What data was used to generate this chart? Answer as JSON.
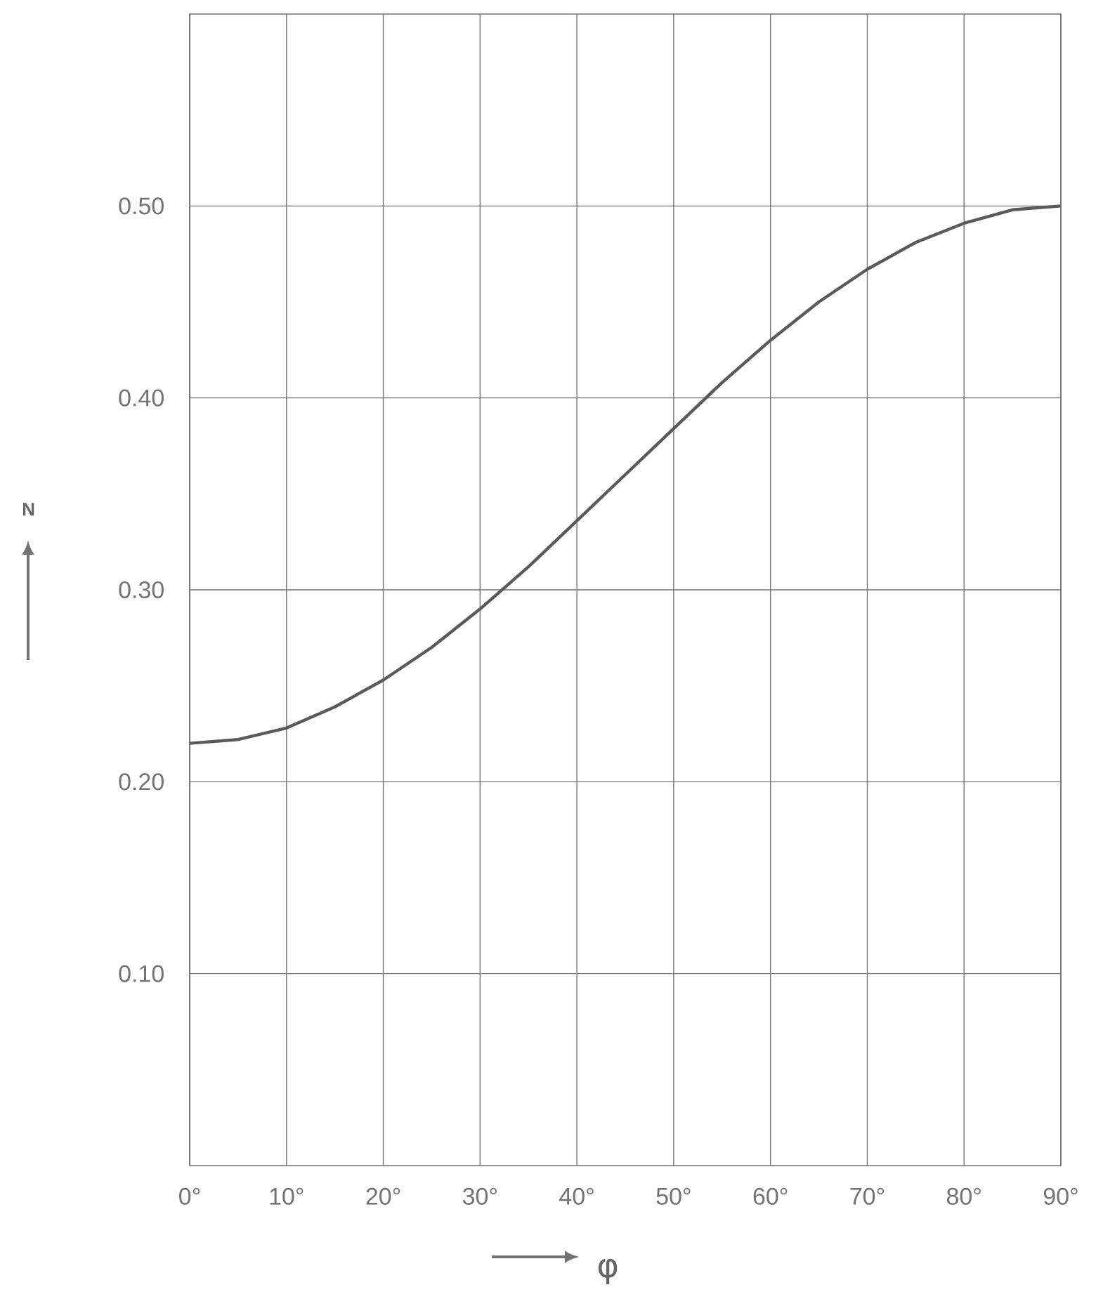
{
  "chart_data": {
    "type": "line",
    "xlabel": "φ",
    "ylabel": "N",
    "x": [
      0,
      5,
      10,
      15,
      20,
      25,
      30,
      35,
      40,
      45,
      50,
      55,
      60,
      65,
      70,
      75,
      80,
      85,
      90
    ],
    "series": [
      {
        "color": "#5a5a5a",
        "values": [
          0.22,
          0.222,
          0.228,
          0.239,
          0.253,
          0.27,
          0.29,
          0.312,
          0.336,
          0.36,
          0.384,
          0.408,
          0.43,
          0.45,
          0.467,
          0.481,
          0.491,
          0.498,
          0.5
        ]
      }
    ],
    "xlim": [
      0,
      90
    ],
    "xticks": [
      {
        "value": 0,
        "label": "0°"
      },
      {
        "value": 10,
        "label": "10°"
      },
      {
        "value": 20,
        "label": "20°"
      },
      {
        "value": 30,
        "label": "30°"
      },
      {
        "value": 40,
        "label": "40°"
      },
      {
        "value": 50,
        "label": "50°"
      },
      {
        "value": 60,
        "label": "60°"
      },
      {
        "value": 70,
        "label": "70°"
      },
      {
        "value": 80,
        "label": "80°"
      },
      {
        "value": 90,
        "label": "90°"
      }
    ],
    "ylim": [
      0,
      0.6
    ],
    "yticks": [
      {
        "value": 0.1,
        "label": "0.10"
      },
      {
        "value": 0.2,
        "label": "0.20"
      },
      {
        "value": 0.3,
        "label": "0.30"
      },
      {
        "value": 0.4,
        "label": "0.40"
      },
      {
        "value": 0.5,
        "label": "0.50"
      }
    ],
    "grid": true,
    "marker": "none",
    "line_style": "solid"
  }
}
